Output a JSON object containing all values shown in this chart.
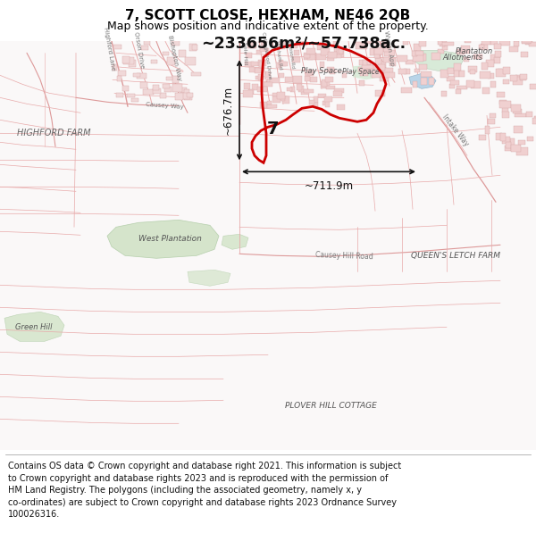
{
  "title": "7, SCOTT CLOSE, HEXHAM, NE46 2QB",
  "subtitle": "Map shows position and indicative extent of the property.",
  "area_text": "~233656m²/~57.738ac.",
  "width_text": "~711.9m",
  "height_text": "~676.7m",
  "label_7": "7",
  "footer_text": "Contains OS data © Crown copyright and database right 2021. This information is subject to Crown copyright and database rights 2023 and is reproduced with the permission of HM Land Registry. The polygons (including the associated geometry, namely x, y co-ordinates) are subject to Crown copyright and database rights 2023 Ordnance Survey 100026316.",
  "bg_color": "#ffffff",
  "map_bg_color": "#faf5f5",
  "title_fontsize": 11,
  "subtitle_fontsize": 9
}
